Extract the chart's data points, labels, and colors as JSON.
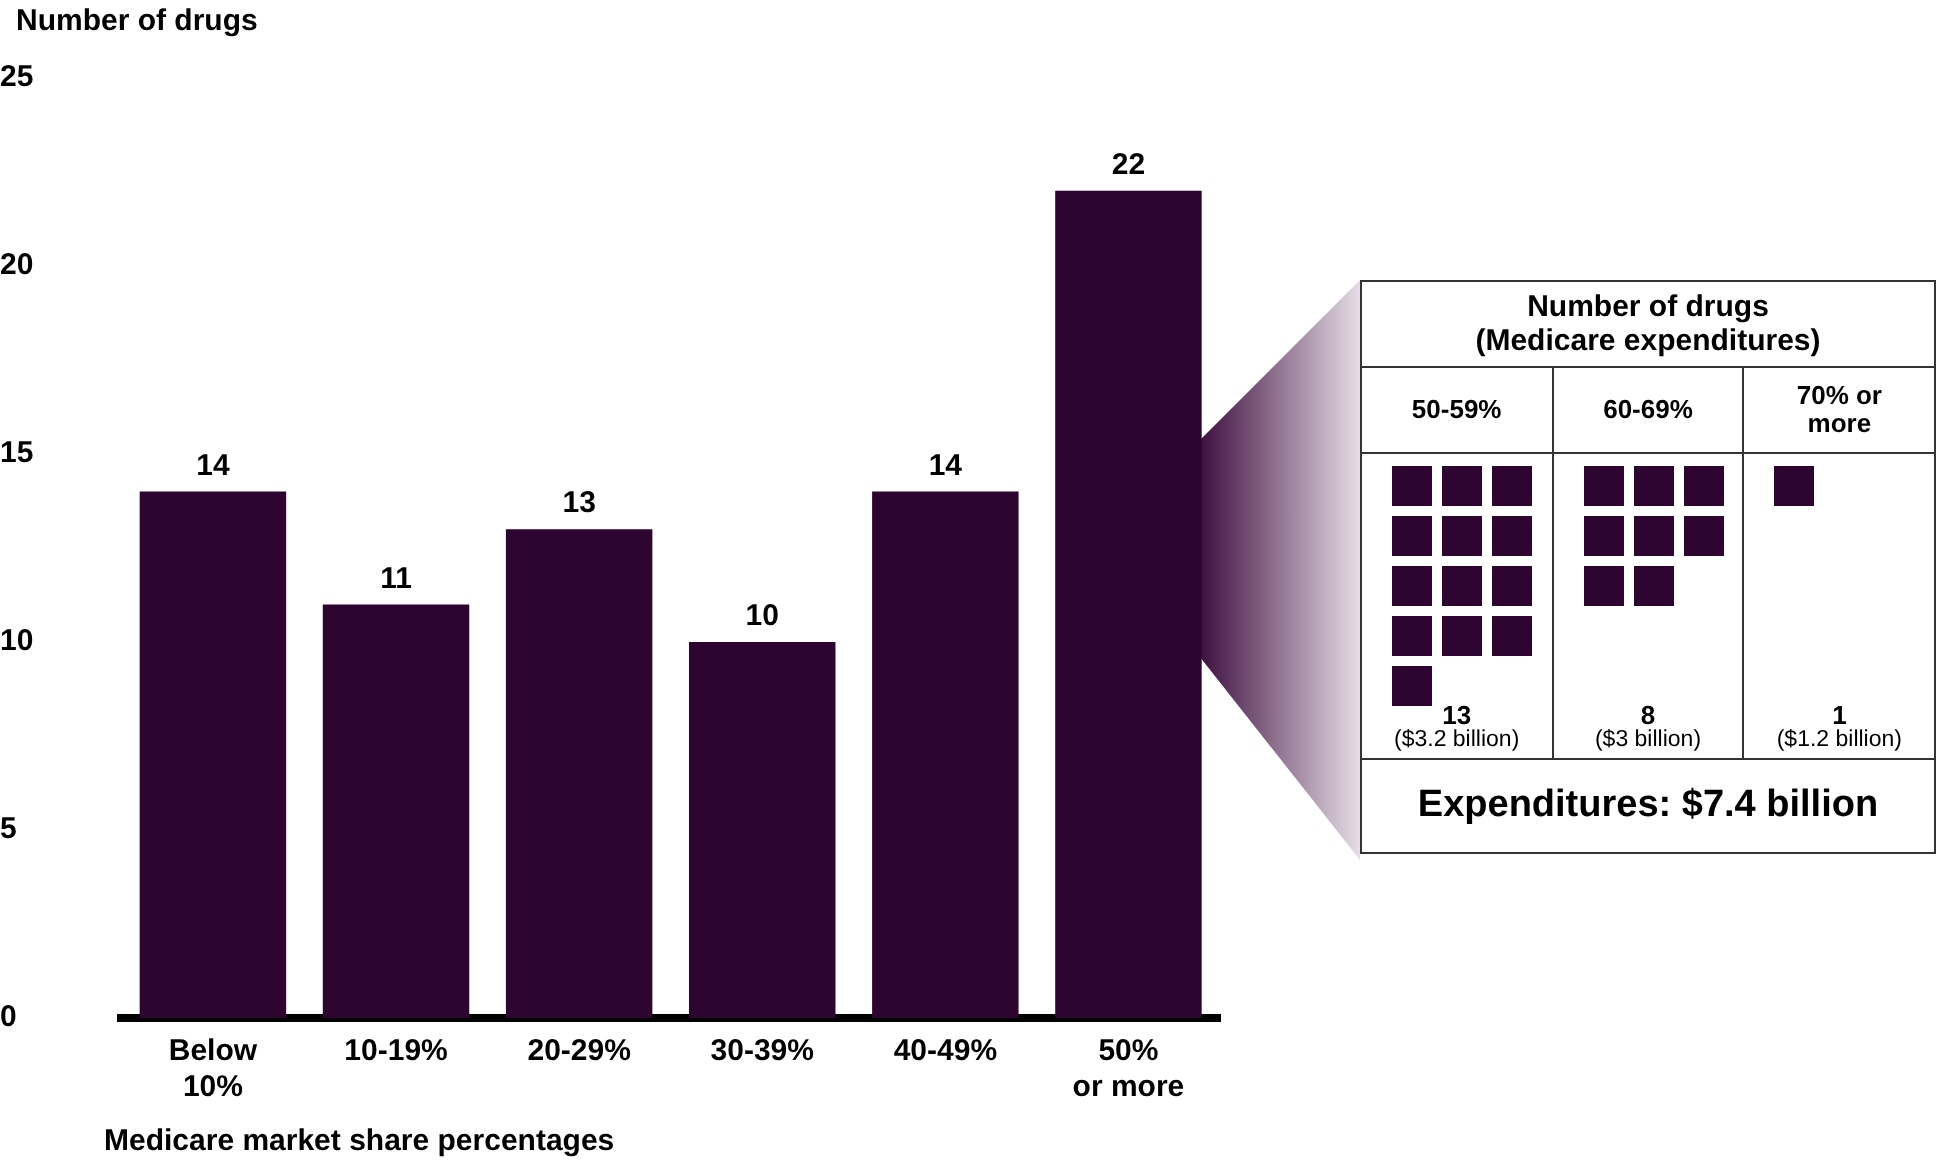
{
  "chart_data": [
    {
      "type": "bar",
      "ylabel": "Number of drugs",
      "xlabel": "Medicare market share percentages",
      "categories": [
        "Below\n10%",
        "10-19%",
        "20-29%",
        "30-39%",
        "40-49%",
        "50%\nor more"
      ],
      "values": [
        14,
        11,
        13,
        10,
        14,
        22
      ],
      "color": "#2e0530",
      "data_labels": true,
      "ylim": [
        0,
        25
      ],
      "yticks": [
        0,
        5,
        10,
        15,
        20,
        25
      ],
      "grid": false,
      "legend": false
    },
    {
      "type": "other",
      "title": "Number of drugs\n(Medicare expenditures)",
      "categories": [
        "50-59%",
        "60-69%",
        "70% or\nmore"
      ],
      "values": [
        13,
        8,
        1
      ],
      "color": "#2e0530",
      "data_labels": true,
      "annotations": [
        "($3.2 billion)",
        "($3 billion)",
        "($1.2 billion)",
        "Expenditures: $7.4 billion"
      ]
    }
  ]
}
